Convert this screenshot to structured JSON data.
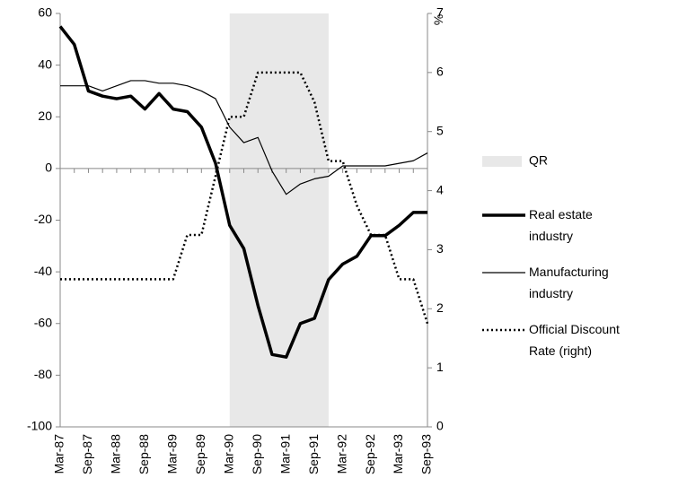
{
  "chart_data": {
    "type": "line",
    "y2label": "%",
    "categories": [
      "Mar-87",
      null,
      "Sep-87",
      null,
      "Mar-88",
      null,
      "Sep-88",
      null,
      "Mar-89",
      null,
      "Sep-89",
      null,
      "Mar-90",
      null,
      "Sep-90",
      null,
      "Mar-91",
      null,
      "Sep-91",
      null,
      "Mar-92",
      null,
      "Sep-92",
      null,
      "Mar-93",
      null,
      "Sep-93"
    ],
    "bands": [
      {
        "name": "QR",
        "color": "#e8e8e8",
        "start": 12,
        "end": 19
      }
    ],
    "series": [
      {
        "name": "Real estate industry",
        "color": "#000000",
        "width": 3.5,
        "dash": "solid",
        "values": [
          55,
          48,
          30,
          28,
          27,
          28,
          23,
          29,
          23,
          22,
          16,
          2,
          -22,
          -31,
          -53,
          -72,
          -73,
          -60,
          -58,
          -43,
          -37,
          -34,
          -26,
          -26,
          -22,
          -17,
          -17
        ]
      },
      {
        "name": "Manufacturing industry",
        "color": "#000000",
        "width": 1.2,
        "dash": "solid",
        "values": [
          32,
          32,
          32,
          30,
          32,
          34,
          34,
          33,
          33,
          32,
          30,
          27,
          16,
          10,
          12,
          -1,
          -10,
          -6,
          -4,
          -3,
          1,
          1,
          1,
          1,
          2,
          3,
          6
        ]
      },
      {
        "name": "Official Discount Rate (right)",
        "color": "#000000",
        "width": 2.5,
        "dash": "dotted",
        "axis": "y2",
        "values": [
          2.5,
          2.5,
          2.5,
          2.5,
          2.5,
          2.5,
          2.5,
          2.5,
          2.5,
          3.25,
          3.25,
          4.25,
          5.25,
          5.25,
          6,
          6,
          6,
          6,
          5.5,
          4.5,
          4.5,
          3.75,
          3.25,
          3.25,
          2.5,
          2.5,
          1.75
        ]
      }
    ],
    "ylim": [
      -100,
      60
    ],
    "yticks": [
      -100,
      -80,
      -60,
      -40,
      -20,
      0,
      20,
      40,
      60
    ],
    "y2lim": [
      0,
      7
    ],
    "y2ticks": [
      0,
      1,
      2,
      3,
      4,
      5,
      6,
      7
    ]
  }
}
